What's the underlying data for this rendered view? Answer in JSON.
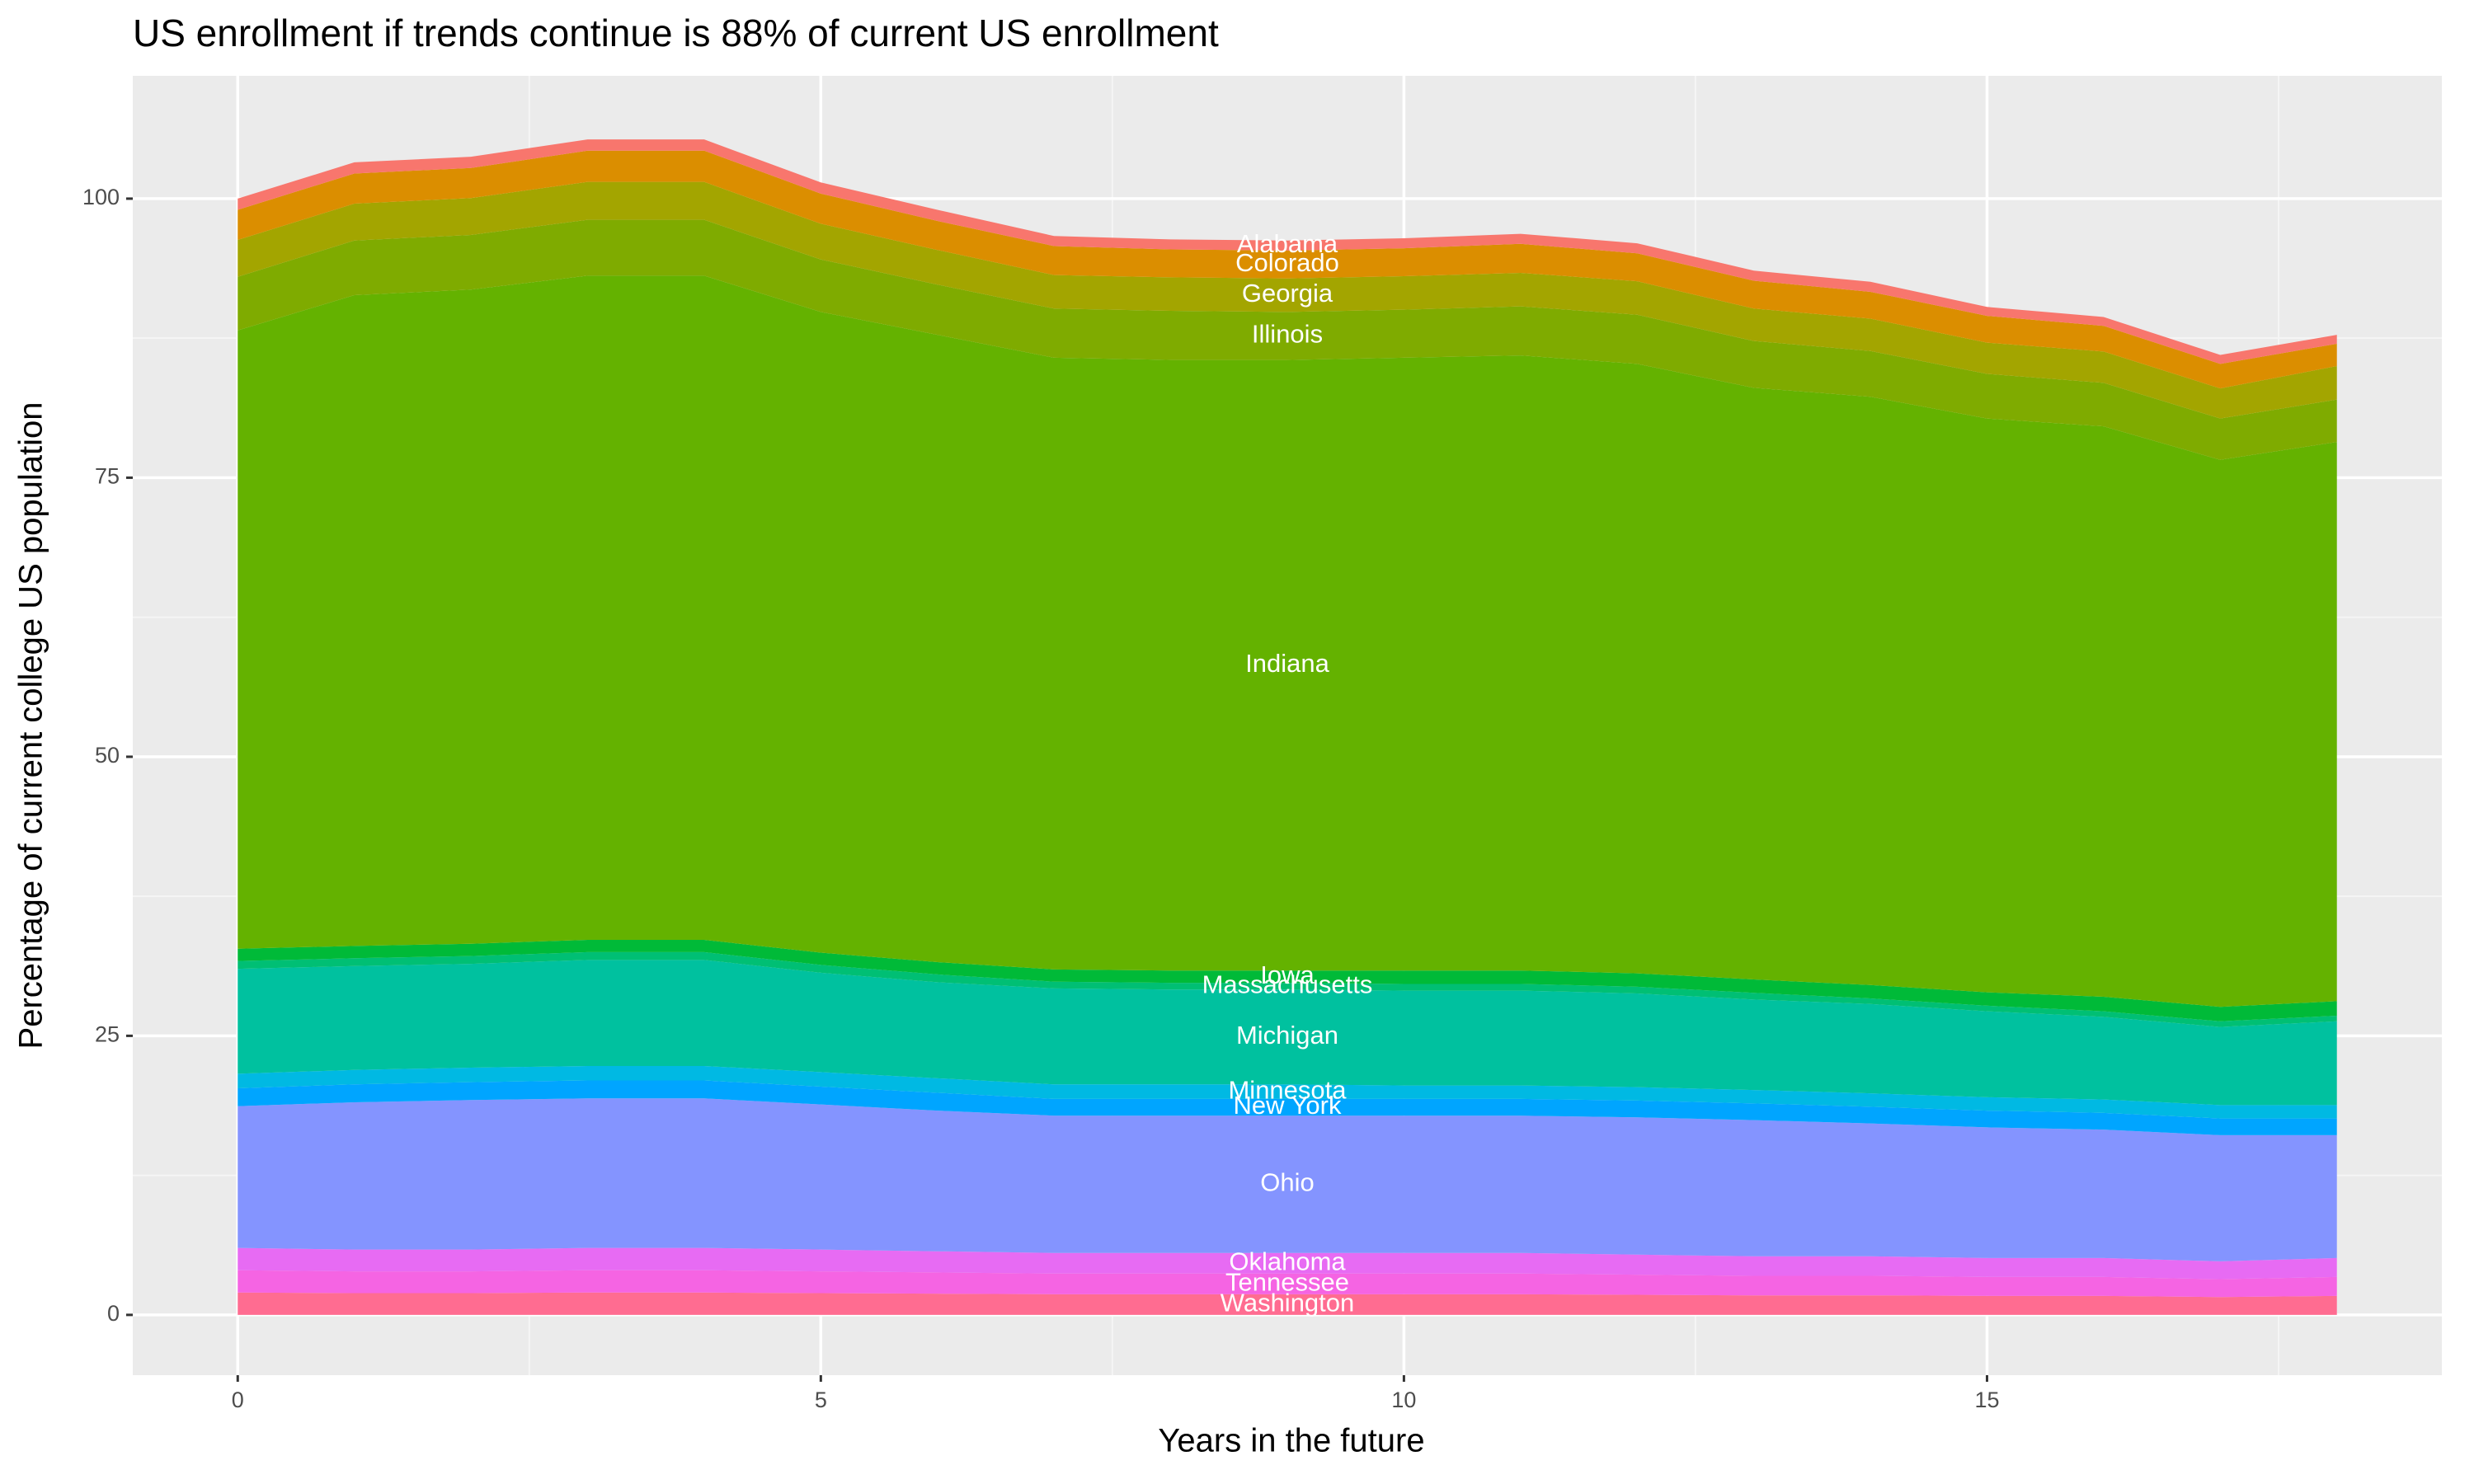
{
  "chart_data": {
    "type": "stacked-area",
    "title": "US enrollment if trends continue is 88% of current US enrollment",
    "x_label": "Years in the future",
    "y_label": "Percentage of current college US population",
    "x": [
      0,
      1,
      2,
      3,
      4,
      5,
      6,
      7,
      8,
      9,
      10,
      11,
      12,
      13,
      14,
      15,
      16,
      17,
      18
    ],
    "xlim": [
      -0.9,
      18.9
    ],
    "xticks": [
      0,
      5,
      10,
      15
    ],
    "ylim": [
      -5.4,
      111
    ],
    "yticks": [
      0,
      25,
      50,
      75,
      100
    ],
    "grid": true,
    "label_x": 9,
    "series": [
      {
        "name": "Washington",
        "color": "#ff6c91",
        "values": [
          2,
          1.95,
          1.95,
          2,
          2,
          1.95,
          1.9,
          1.85,
          1.85,
          1.85,
          1.85,
          1.85,
          1.8,
          1.75,
          1.75,
          1.7,
          1.7,
          1.6,
          1.7
        ]
      },
      {
        "name": "Tennessee",
        "color": "#f564e3",
        "values": [
          2,
          1.95,
          1.95,
          2,
          2,
          1.95,
          1.9,
          1.85,
          1.85,
          1.85,
          1.85,
          1.85,
          1.8,
          1.75,
          1.75,
          1.7,
          1.7,
          1.6,
          1.7
        ]
      },
      {
        "name": "Oklahoma",
        "color": "#e76bf3",
        "values": [
          2,
          1.95,
          1.95,
          2,
          2,
          1.95,
          1.9,
          1.85,
          1.85,
          1.85,
          1.85,
          1.85,
          1.8,
          1.75,
          1.75,
          1.7,
          1.7,
          1.6,
          1.7
        ]
      },
      {
        "name": "Ohio",
        "color": "#8494ff",
        "values": [
          12.7,
          13.2,
          13.4,
          13.4,
          13.4,
          13,
          12.6,
          12.3,
          12.3,
          12.3,
          12.3,
          12.3,
          12.3,
          12.2,
          11.9,
          11.7,
          11.5,
          11.3,
          11
        ]
      },
      {
        "name": "New York",
        "color": "#00a5ff",
        "values": [
          1.6,
          1.6,
          1.6,
          1.6,
          1.6,
          1.6,
          1.6,
          1.5,
          1.5,
          1.5,
          1.5,
          1.5,
          1.5,
          1.5,
          1.5,
          1.5,
          1.5,
          1.5,
          1.5
        ]
      },
      {
        "name": "Minnesota",
        "color": "#00b9e3",
        "values": [
          1.3,
          1.3,
          1.3,
          1.3,
          1.3,
          1.3,
          1.3,
          1.3,
          1.3,
          1.3,
          1.2,
          1.2,
          1.2,
          1.2,
          1.2,
          1.2,
          1.2,
          1.2,
          1.2
        ]
      },
      {
        "name": "Michigan",
        "color": "#00c19f",
        "values": [
          9.4,
          9.3,
          9.3,
          9.5,
          9.5,
          8.9,
          8.6,
          8.6,
          8.5,
          8.5,
          8.5,
          8.5,
          8.4,
          8.1,
          8.0,
          7.7,
          7.4,
          7.0,
          7.5
        ]
      },
      {
        "name": "Massachusetts",
        "color": "#00bf74",
        "values": [
          0.7,
          0.7,
          0.7,
          0.7,
          0.7,
          0.7,
          0.7,
          0.6,
          0.6,
          0.6,
          0.6,
          0.6,
          0.6,
          0.6,
          0.5,
          0.5,
          0.5,
          0.5,
          0.5
        ]
      },
      {
        "name": "Iowa",
        "color": "#00ba38",
        "values": [
          1.1,
          1.1,
          1.1,
          1.1,
          1.1,
          1.1,
          1.1,
          1.1,
          1.1,
          1.1,
          1.2,
          1.2,
          1.2,
          1.2,
          1.2,
          1.2,
          1.3,
          1.3,
          1.3
        ]
      },
      {
        "name": "Indiana",
        "color": "#64b200",
        "values": [
          55.4,
          58.3,
          58.6,
          59.5,
          59.5,
          57.4,
          56.2,
          54.8,
          54.7,
          54.7,
          54.9,
          55.1,
          54.6,
          53,
          52.7,
          51.4,
          51.1,
          49,
          50.1
        ]
      },
      {
        "name": "Illinois",
        "color": "#7fab00",
        "values": [
          4.8,
          4.9,
          4.9,
          5,
          5,
          4.7,
          4.5,
          4.4,
          4.4,
          4.3,
          4.3,
          4.4,
          4.4,
          4.2,
          4.1,
          4,
          3.9,
          3.7,
          3.8
        ]
      },
      {
        "name": "Georgia",
        "color": "#a3a500",
        "values": [
          3.3,
          3.3,
          3.3,
          3.4,
          3.4,
          3.2,
          3.1,
          3,
          3,
          3,
          3,
          3,
          3,
          2.9,
          2.9,
          2.8,
          2.8,
          2.7,
          3
        ]
      },
      {
        "name": "Colorado",
        "color": "#db8e00",
        "values": [
          2.7,
          2.7,
          2.7,
          2.8,
          2.8,
          2.7,
          2.6,
          2.6,
          2.5,
          2.5,
          2.5,
          2.6,
          2.5,
          2.5,
          2.4,
          2.4,
          2.3,
          2.2,
          2
        ]
      },
      {
        "name": "Alabama",
        "color": "#f8766d",
        "values": [
          1,
          1,
          1,
          1,
          1,
          1,
          1,
          0.9,
          0.9,
          0.9,
          0.9,
          0.9,
          0.9,
          0.9,
          0.9,
          0.8,
          0.8,
          0.8,
          0.8
        ]
      }
    ]
  }
}
